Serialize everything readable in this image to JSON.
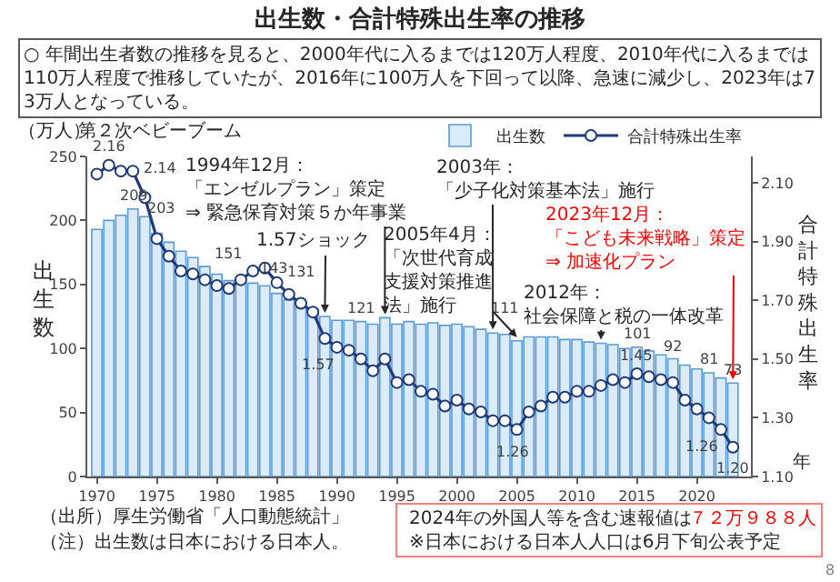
{
  "chart_data": {
    "type": "bar",
    "title": "出生数・合計特殊出生率の推移",
    "subtitle": "○ 年間出生者数の推移を見ると、2000年代に入るまでは120万人程度、2010年代に入るまでは110万人程度で推移していたが、2016年に100万人を下回って以降、急速に減少し、2023年は73万人となっている。",
    "xlabel": "年",
    "ylabel": "出生数",
    "y2label": "合計特殊出生率",
    "x": [
      1970,
      1971,
      1972,
      1973,
      1974,
      1975,
      1976,
      1977,
      1978,
      1979,
      1980,
      1981,
      1982,
      1983,
      1984,
      1985,
      1986,
      1987,
      1988,
      1989,
      1990,
      1991,
      1992,
      1993,
      1994,
      1995,
      1996,
      1997,
      1998,
      1999,
      2000,
      2001,
      2002,
      2003,
      2004,
      2005,
      2006,
      2007,
      2008,
      2009,
      2010,
      2011,
      2012,
      2013,
      2014,
      2015,
      2016,
      2017,
      2018,
      2019,
      2020,
      2021,
      2022,
      2023
    ],
    "series": [
      {
        "name": "出生数",
        "color": "#dcebf8",
        "values": [
          193,
          200,
          204,
          209,
          203,
          190,
          183,
          176,
          171,
          164,
          158,
          153,
          151,
          151,
          149,
          143,
          138,
          135,
          131,
          125,
          122,
          122,
          121,
          119,
          124,
          119,
          121,
          119,
          120,
          118,
          119,
          117,
          115,
          112,
          111,
          106,
          109,
          109,
          109,
          107,
          107,
          105,
          104,
          103,
          100,
          101,
          98,
          95,
          92,
          87,
          84,
          81,
          77,
          73
        ],
        "value_labels": [
          null,
          null,
          null,
          "209",
          "203",
          null,
          null,
          null,
          null,
          null,
          null,
          null,
          "151",
          null,
          null,
          "143",
          null,
          null,
          "131",
          null,
          null,
          null,
          "121",
          null,
          null,
          null,
          null,
          null,
          null,
          null,
          null,
          null,
          null,
          null,
          "111",
          null,
          null,
          null,
          null,
          null,
          null,
          null,
          null,
          null,
          null,
          "101",
          null,
          null,
          "92",
          null,
          null,
          "81",
          null,
          "73"
        ]
      },
      {
        "name": "合計特殊出生率",
        "type": "line",
        "axis": "y2",
        "color": "#1f3a7a",
        "values": [
          2.13,
          2.16,
          2.14,
          2.14,
          2.05,
          1.91,
          1.85,
          1.8,
          1.79,
          1.77,
          1.75,
          1.74,
          1.77,
          1.8,
          1.81,
          1.76,
          1.72,
          1.69,
          1.66,
          1.57,
          1.54,
          1.53,
          1.5,
          1.46,
          1.5,
          1.42,
          1.43,
          1.39,
          1.38,
          1.34,
          1.36,
          1.33,
          1.32,
          1.29,
          1.29,
          1.26,
          1.32,
          1.34,
          1.37,
          1.37,
          1.39,
          1.39,
          1.41,
          1.43,
          1.42,
          1.45,
          1.44,
          1.43,
          1.42,
          1.36,
          1.33,
          1.3,
          1.26,
          1.2
        ],
        "value_labels": [
          null,
          "2.16",
          null,
          "2.14",
          null,
          null,
          null,
          null,
          null,
          null,
          null,
          null,
          null,
          null,
          null,
          null,
          null,
          null,
          null,
          "1.57",
          null,
          null,
          null,
          null,
          null,
          null,
          null,
          null,
          null,
          null,
          null,
          null,
          null,
          null,
          null,
          "1.26",
          null,
          null,
          null,
          null,
          null,
          null,
          null,
          null,
          null,
          "1.45",
          null,
          null,
          null,
          null,
          null,
          null,
          "1.26",
          "1.20"
        ]
      }
    ],
    "xlim": [
      1969.2,
      2024.5
    ],
    "xticks": [
      1970,
      1975,
      1980,
      1985,
      1990,
      1995,
      2000,
      2005,
      2010,
      2015,
      2020
    ],
    "ylim": [
      0,
      250
    ],
    "yticks": [
      0,
      50,
      100,
      150,
      200,
      250
    ],
    "y2lim": [
      1.1,
      2.19
    ],
    "y2ticks": [
      {
        "value": 1.1,
        "label": "1.10"
      },
      {
        "value": 1.3,
        "label": "1.30"
      },
      {
        "value": 1.5,
        "label": "1.50"
      },
      {
        "value": 1.7,
        "label": "1.70"
      },
      {
        "value": 1.9,
        "label": "1.90"
      },
      {
        "value": 2.1,
        "label": "2.10"
      }
    ],
    "marker": "circle",
    "line_style": "solid",
    "legend": "top right",
    "annotations": [
      "第２次ベビーブーム",
      {
        "text": "1.57ショック",
        "x": 1989,
        "y": 125
      },
      {
        "text": "1994年12月：「エンゼルプラン」策定⇒ 緊急保育対策５か年事業",
        "x": 1994,
        "y": 124
      },
      {
        "text": "2003年：「少子化対策基本法」施行",
        "x": 2003,
        "y": 112
      },
      {
        "text": "2005年4月：「次世代育成支援対策推進法」施行",
        "x": 2005,
        "y": 106
      },
      {
        "text": "2012年：社会保障と税の一体改革",
        "x": 2012,
        "y": 104
      },
      {
        "text": "2023年12月：「こども未来戦略」策定⇒ 加速化プラン",
        "x": 2023,
        "y": 73
      },
      "（出所）厚生労働省「人口動態統計」",
      "（注）出生数は日本における日本人。",
      "2024年の外国人等を含む速報値は",
      "７２万９８８人",
      "※日本における日本人人口は6月下旬公表予定",
      "8",
      "（万人）"
    ]
  }
}
